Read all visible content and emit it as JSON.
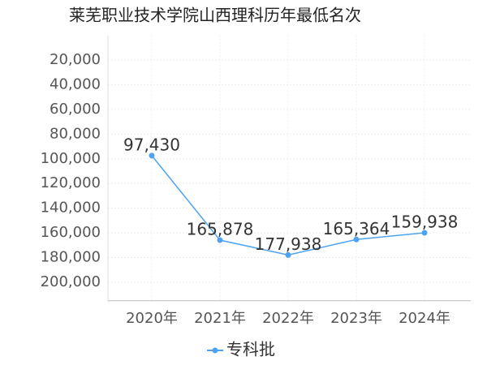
{
  "chart_data": {
    "type": "line",
    "title": "莱芜职业技术学院山西理科历年最低名次",
    "categories": [
      "2020年",
      "2021年",
      "2022年",
      "2023年",
      "2024年"
    ],
    "series": [
      {
        "name": "专科批",
        "color": "#4da3f0",
        "values": [
          97430,
          165878,
          177938,
          165364,
          159938
        ],
        "value_labels": [
          "97,430",
          "165,878",
          "177,938",
          "165,364",
          "159,938"
        ]
      }
    ],
    "ylim": [
      0,
      215000
    ],
    "y_inverted": true,
    "yticks": [
      {
        "value": 20000,
        "label": "20,000"
      },
      {
        "value": 40000,
        "label": "40,000"
      },
      {
        "value": 60000,
        "label": "60,000"
      },
      {
        "value": 80000,
        "label": "80,000"
      },
      {
        "value": 100000,
        "label": "100,000"
      },
      {
        "value": 120000,
        "label": "120,000"
      },
      {
        "value": 140000,
        "label": "140,000"
      },
      {
        "value": 160000,
        "label": "160,000"
      },
      {
        "value": 180000,
        "label": "180,000"
      },
      {
        "value": 200000,
        "label": "200,000"
      }
    ],
    "grid": true,
    "legend": "bottom"
  }
}
